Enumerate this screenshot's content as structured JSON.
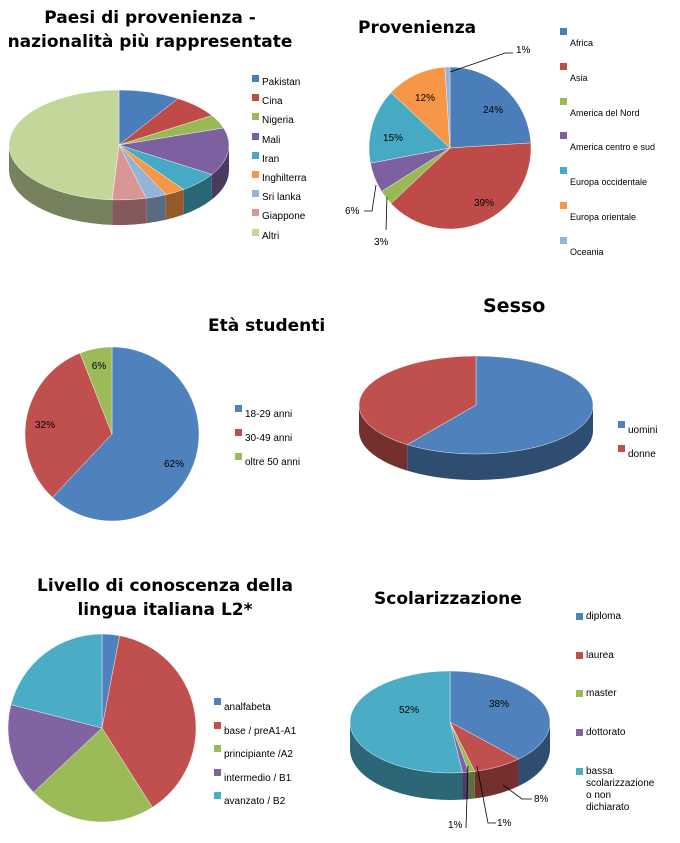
{
  "chart_data": [
    {
      "id": "paesi",
      "type": "pie",
      "style": "3d",
      "title": "Paesi di provenienza - nazionalità più rappresentate",
      "title_lines": [
        "Paesi di provenienza -",
        "nazionalità più rappresentate"
      ],
      "categories": [
        "Pakistan",
        "Cina",
        "Nigeria",
        "Mali",
        "Iran",
        "Inghilterra",
        "Sri lanka",
        "Giappone",
        "Altri"
      ],
      "values": [
        9,
        7,
        4,
        14,
        6,
        3,
        3,
        5,
        49
      ],
      "colors": [
        "#4a7ebb",
        "#be4b48",
        "#98b954",
        "#7d60a0",
        "#46aac5",
        "#f79646",
        "#95b3d7",
        "#da9694",
        "#c4d79b"
      ],
      "data_labels": false,
      "legend_position": "right"
    },
    {
      "id": "provenienza",
      "type": "pie",
      "style": "2d",
      "title": "Provenienza",
      "categories": [
        "Africa",
        "Asia",
        "America del Nord",
        "America centro e sud",
        "Europa occidentale",
        "Europa orientale",
        "Oceania"
      ],
      "values": [
        24,
        39,
        3,
        6,
        15,
        12,
        1
      ],
      "labels": [
        "24%",
        "39%",
        "3%",
        "6%",
        "15%",
        "12%",
        "1%"
      ],
      "colors": [
        "#4a7ebb",
        "#be4b48",
        "#98b954",
        "#7d60a0",
        "#46aac5",
        "#f79646",
        "#95b3d7"
      ],
      "data_labels": true,
      "legend_position": "right"
    },
    {
      "id": "eta",
      "type": "pie",
      "style": "2d",
      "title": "Età studenti",
      "categories": [
        "18-29 anni",
        "30-49 anni",
        "oltre 50 anni"
      ],
      "values": [
        62,
        32,
        6
      ],
      "labels": [
        "62%",
        "32%",
        "6%"
      ],
      "colors": [
        "#4f81bd",
        "#c0504d",
        "#9bbb59"
      ],
      "data_labels": true,
      "legend_position": "right"
    },
    {
      "id": "sesso",
      "type": "pie",
      "style": "3d",
      "title": "Sesso",
      "categories": [
        "uomini",
        "donne"
      ],
      "values": [
        60,
        40
      ],
      "colors": [
        "#4f81bd",
        "#c0504d"
      ],
      "data_labels": false,
      "legend_position": "right"
    },
    {
      "id": "livello",
      "type": "pie",
      "style": "2d",
      "title": "Livello di conoscenza della lingua italiana L2*",
      "title_lines": [
        "Livello di conoscenza della",
        "lingua italiana L2*"
      ],
      "categories": [
        "analfabeta",
        "base / preA1-A1",
        "principiante /A2",
        "intermedio / B1",
        "avanzato / B2"
      ],
      "values": [
        3,
        38,
        22,
        16,
        21
      ],
      "colors": [
        "#4f81bd",
        "#c0504d",
        "#9bbb59",
        "#8064a2",
        "#4bacc6"
      ],
      "data_labels": false,
      "legend_position": "right"
    },
    {
      "id": "scolarizzazione",
      "type": "pie",
      "style": "3d",
      "title": "Scolarizzazione",
      "categories": [
        "diploma",
        "laurea",
        "master",
        "dottorato",
        "bassa scolarizzazione o non dichiarato"
      ],
      "values": [
        38,
        8,
        1,
        1,
        52
      ],
      "labels": [
        "38%",
        "8%",
        "1%",
        "1%",
        "52%"
      ],
      "colors": [
        "#4f81bd",
        "#c0504d",
        "#9bbb59",
        "#8064a2",
        "#4bacc6"
      ],
      "data_labels": true,
      "legend_position": "right"
    }
  ],
  "legends": {
    "paesi": [
      "Pakistan",
      "Cina",
      "Nigeria",
      "Mali",
      "Iran",
      "Inghilterra",
      "Sri lanka",
      "Giappone",
      "Altri"
    ],
    "provenienza": [
      "Africa",
      "Asia",
      "America del Nord",
      "America centro e sud",
      "Europa occidentale",
      "Europa orientale",
      "Oceania"
    ],
    "eta": [
      "18-29 anni",
      "30-49 anni",
      "oltre 50 anni"
    ],
    "sesso": [
      "uomini",
      "donne"
    ],
    "livello": [
      "analfabeta",
      "base / preA1-A1",
      "principiante /A2",
      "intermedio / B1",
      "avanzato / B2"
    ],
    "scolarizzazione": [
      "diploma",
      "laurea",
      "master",
      "dottorato",
      "bassa scolarizzazione o non dichiarato"
    ]
  },
  "titles": {
    "paesi_1": "Paesi di provenienza -",
    "paesi_2": "nazionalità più rappresentate",
    "provenienza": "Provenienza",
    "eta": "Età studenti",
    "sesso": "Sesso",
    "livello_1": "Livello di conoscenza della",
    "livello_2": "lingua italiana L2*",
    "scolarizzazione": "Scolarizzazione"
  }
}
